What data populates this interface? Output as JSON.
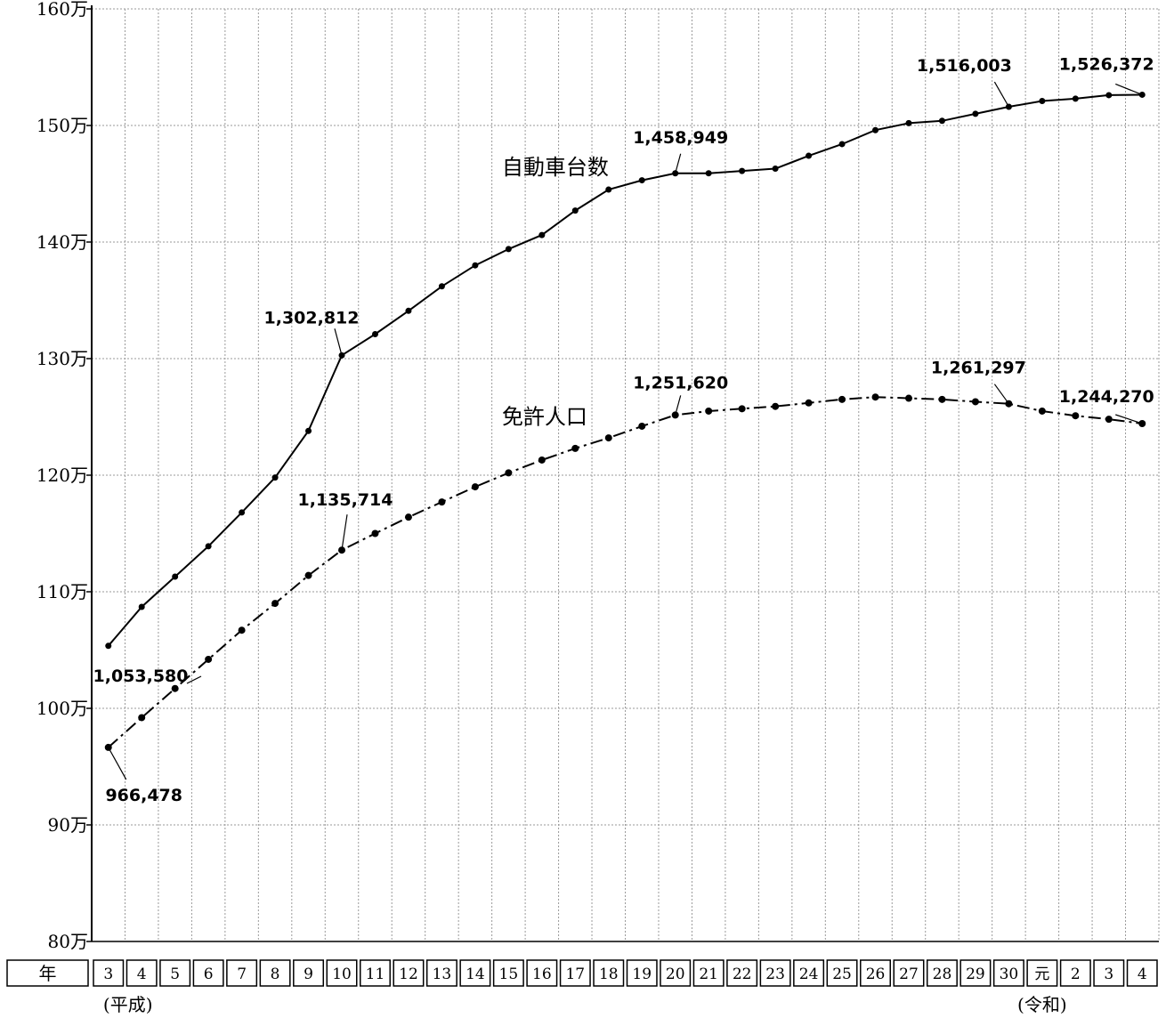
{
  "chart_data": {
    "type": "line",
    "x_axis_header": "年",
    "categories": [
      "3",
      "4",
      "5",
      "6",
      "7",
      "8",
      "9",
      "10",
      "11",
      "12",
      "13",
      "14",
      "15",
      "16",
      "17",
      "18",
      "19",
      "20",
      "21",
      "22",
      "23",
      "24",
      "25",
      "26",
      "27",
      "28",
      "29",
      "30",
      "元",
      "2",
      "3",
      "4"
    ],
    "era_labels": [
      {
        "text": "(平成)",
        "category_index": 0
      },
      {
        "text": "(令和)",
        "category_index": 28
      }
    ],
    "ylim": [
      800000,
      1600000
    ],
    "yticks": [
      {
        "value": 800000,
        "label": "80万"
      },
      {
        "value": 900000,
        "label": "90万"
      },
      {
        "value": 1000000,
        "label": "100万"
      },
      {
        "value": 1100000,
        "label": "110万"
      },
      {
        "value": 1200000,
        "label": "120万"
      },
      {
        "value": 1300000,
        "label": "130万"
      },
      {
        "value": 1400000,
        "label": "140万"
      },
      {
        "value": 1500000,
        "label": "150万"
      },
      {
        "value": 1600000,
        "label": "160万"
      }
    ],
    "grid": true,
    "series": [
      {
        "name": "自動車台数",
        "line_style": "solid",
        "label_anchor": {
          "category_index": 11.8,
          "value": 1458000
        },
        "values": [
          1053580,
          1087000,
          1113000,
          1139000,
          1168000,
          1198000,
          1238000,
          1302812,
          1321000,
          1341000,
          1362000,
          1380000,
          1394000,
          1406000,
          1427000,
          1445000,
          1453000,
          1458949,
          1459000,
          1461000,
          1463000,
          1474000,
          1484000,
          1496000,
          1502000,
          1504000,
          1510000,
          1516003,
          1521000,
          1523000,
          1526000,
          1526372
        ],
        "annotations": [
          {
            "index": 0,
            "text": "1,053,580"
          },
          {
            "index": 7,
            "text": "1,302,812"
          },
          {
            "index": 17,
            "text": "1,458,949"
          },
          {
            "index": 27,
            "text": "1,516,003"
          },
          {
            "index": 31,
            "text": "1,526,372"
          }
        ]
      },
      {
        "name": "免許人口",
        "line_style": "dashdot",
        "label_anchor": {
          "category_index": 11.8,
          "value": 1244000
        },
        "values": [
          966478,
          992000,
          1017000,
          1042000,
          1067000,
          1090000,
          1114000,
          1135714,
          1150000,
          1164000,
          1177000,
          1190000,
          1202000,
          1213000,
          1223000,
          1232000,
          1242000,
          1251620,
          1255000,
          1257000,
          1259000,
          1262000,
          1265000,
          1267000,
          1266000,
          1265000,
          1263000,
          1261297,
          1255000,
          1251000,
          1248000,
          1244270
        ],
        "annotations": [
          {
            "index": 0,
            "text": "966,478"
          },
          {
            "index": 7,
            "text": "1,135,714"
          },
          {
            "index": 17,
            "text": "1,251,620"
          },
          {
            "index": 27,
            "text": "1,261,297"
          },
          {
            "index": 31,
            "text": "1,244,270"
          }
        ]
      }
    ]
  }
}
